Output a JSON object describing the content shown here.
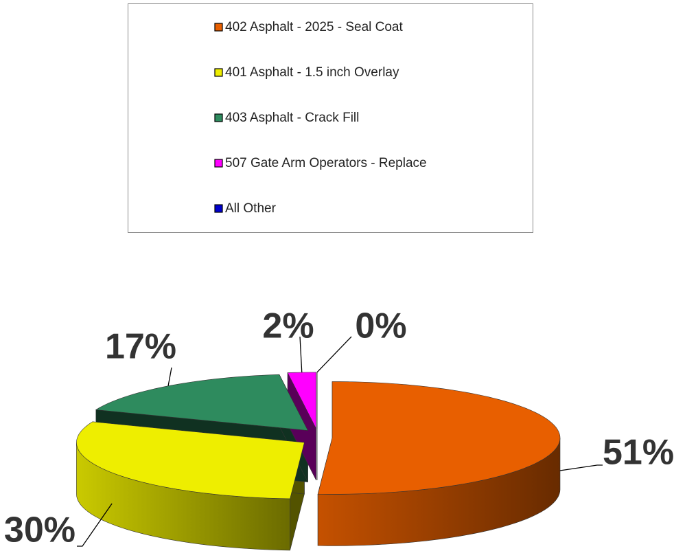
{
  "chart_data": {
    "type": "pie3d",
    "categories": [
      "402 Asphalt - 2025 - Seal Coat",
      "401 Asphalt - 1.5 inch Overlay",
      "403 Asphalt - Crack Fill",
      "507 Gate Arm Operators - Replace",
      "All Other"
    ],
    "values": [
      51,
      30,
      17,
      2,
      0
    ],
    "value_labels": [
      "51%",
      "30%",
      "17%",
      "2%",
      "0%"
    ],
    "colors": [
      "#e85f00",
      "#eeee00",
      "#2e8b5e",
      "#ff00ff",
      "#0000cc"
    ]
  }
}
